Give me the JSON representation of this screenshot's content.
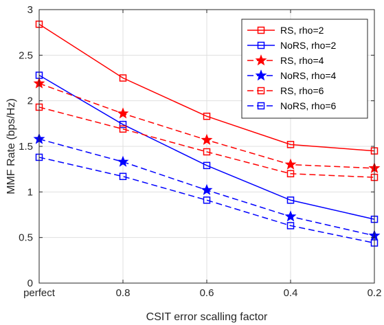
{
  "chart_data": {
    "type": "line",
    "xlabel": "CSIT error scalling factor",
    "ylabel": "MMF Rate (bps/Hz)",
    "categories": [
      "perfect",
      "0.8",
      "0.6",
      "0.4",
      "0.2"
    ],
    "yticks": [
      "0",
      "0.5",
      "1",
      "1.5",
      "2",
      "2.5",
      "3"
    ],
    "ylim": [
      0,
      3
    ],
    "grid": true,
    "legend_position": "top-right",
    "series": [
      {
        "name": "RS, rho=2",
        "color": "#ff0000",
        "dash": "solid",
        "marker": "square",
        "values": [
          2.84,
          2.25,
          1.83,
          1.52,
          1.45
        ]
      },
      {
        "name": "NoRS, rho=2",
        "color": "#0000ff",
        "dash": "solid",
        "marker": "square",
        "values": [
          2.28,
          1.74,
          1.29,
          0.91,
          0.7
        ]
      },
      {
        "name": "RS, rho=4",
        "color": "#ff0000",
        "dash": "dashed",
        "marker": "star",
        "values": [
          2.19,
          1.86,
          1.57,
          1.3,
          1.26
        ]
      },
      {
        "name": "NoRS, rho=4",
        "color": "#0000ff",
        "dash": "dashed",
        "marker": "star",
        "values": [
          1.58,
          1.33,
          1.02,
          0.73,
          0.52
        ]
      },
      {
        "name": "RS, rho=6",
        "color": "#ff0000",
        "dash": "dashed",
        "marker": "square",
        "values": [
          1.93,
          1.69,
          1.44,
          1.2,
          1.16
        ]
      },
      {
        "name": "NoRS, rho=6",
        "color": "#0000ff",
        "dash": "dashed",
        "marker": "square",
        "values": [
          1.38,
          1.17,
          0.91,
          0.63,
          0.44
        ]
      }
    ]
  }
}
